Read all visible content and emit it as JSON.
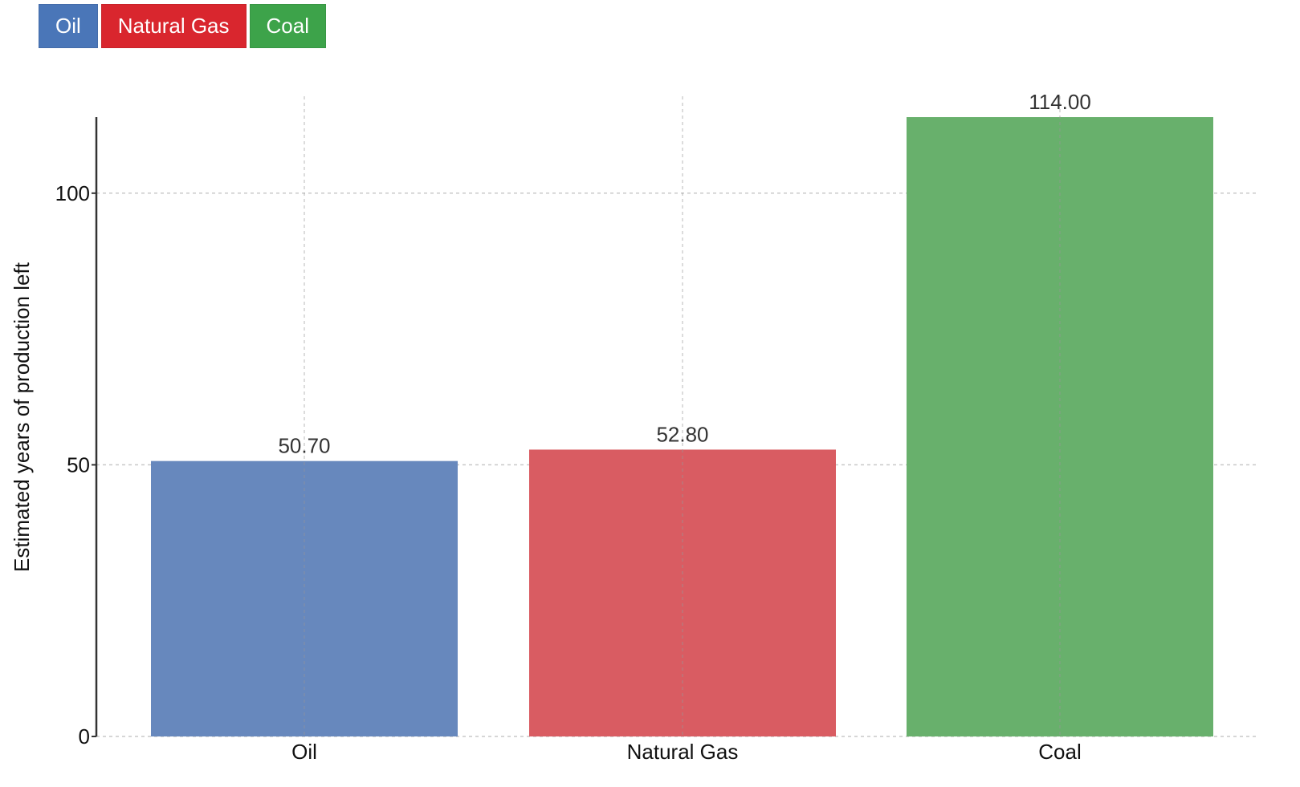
{
  "legend": {
    "items": [
      {
        "label": "Oil",
        "color": "#4a76b8"
      },
      {
        "label": "Natural Gas",
        "color": "#d9262e"
      },
      {
        "label": "Coal",
        "color": "#3da34a"
      }
    ]
  },
  "chart_data": {
    "type": "bar",
    "title": "",
    "xlabel": "",
    "ylabel": "Estimated years of production left",
    "categories": [
      "Oil",
      "Natural Gas",
      "Coal"
    ],
    "values": [
      50.7,
      52.8,
      114.0
    ],
    "value_labels": [
      "50.70",
      "52.80",
      "114.00"
    ],
    "bar_colors": [
      "#6788bd",
      "#d95c62",
      "#68b06c"
    ],
    "ylim": [
      0,
      114
    ],
    "yticks": [
      0,
      50,
      100
    ],
    "grid": true,
    "legend_position": "top-left"
  }
}
